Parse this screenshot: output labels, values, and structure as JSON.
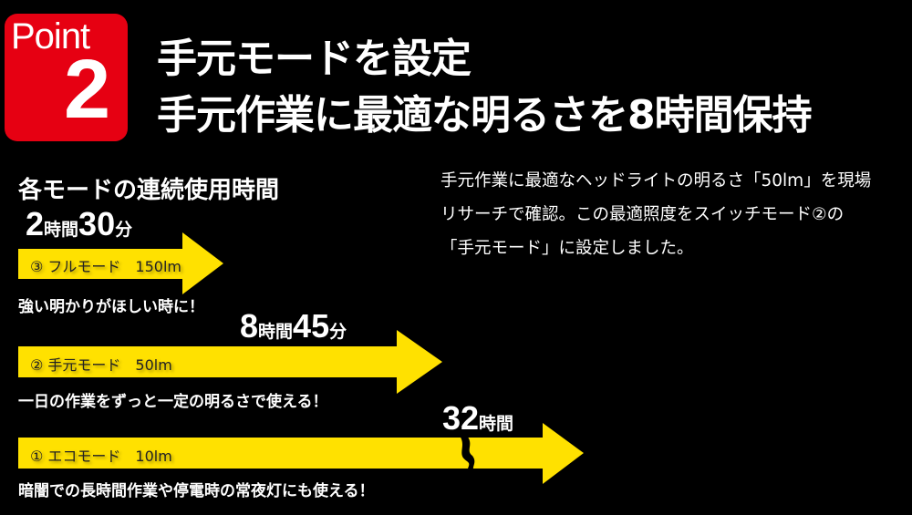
{
  "badge": {
    "word": "Point",
    "number": "2",
    "color": "#e60012"
  },
  "headline": {
    "line1": "手元モードを設定",
    "line2": "手元作業に最適な明るさを8時間保持"
  },
  "description": [
    "手元作業に最適なヘッドライトの明るさ「50lm」を現場",
    "リサーチで確認。この最適照度をスイッチモード②の",
    "「手元モード」に設定しました。"
  ],
  "section_title": "各モードの連続使用時間",
  "arrow_color": "#ffe100",
  "modes": [
    {
      "label": "③ フルモード　150lm",
      "duration": {
        "h": "2",
        "hu": "時間",
        "m": "30",
        "mu": "分"
      },
      "caption": "強い明かりがほしい時に！"
    },
    {
      "label": "② 手元モード　50lm",
      "duration": {
        "h": "8",
        "hu": "時間",
        "m": "45",
        "mu": "分"
      },
      "caption": "一日の作業をずっと一定の明るさで使える！"
    },
    {
      "label": "① エコモード　10lm",
      "duration": {
        "h": "32",
        "hu": "時間"
      },
      "caption": "暗闇での長時間作業や停電時の常夜灯にも使える！"
    }
  ]
}
